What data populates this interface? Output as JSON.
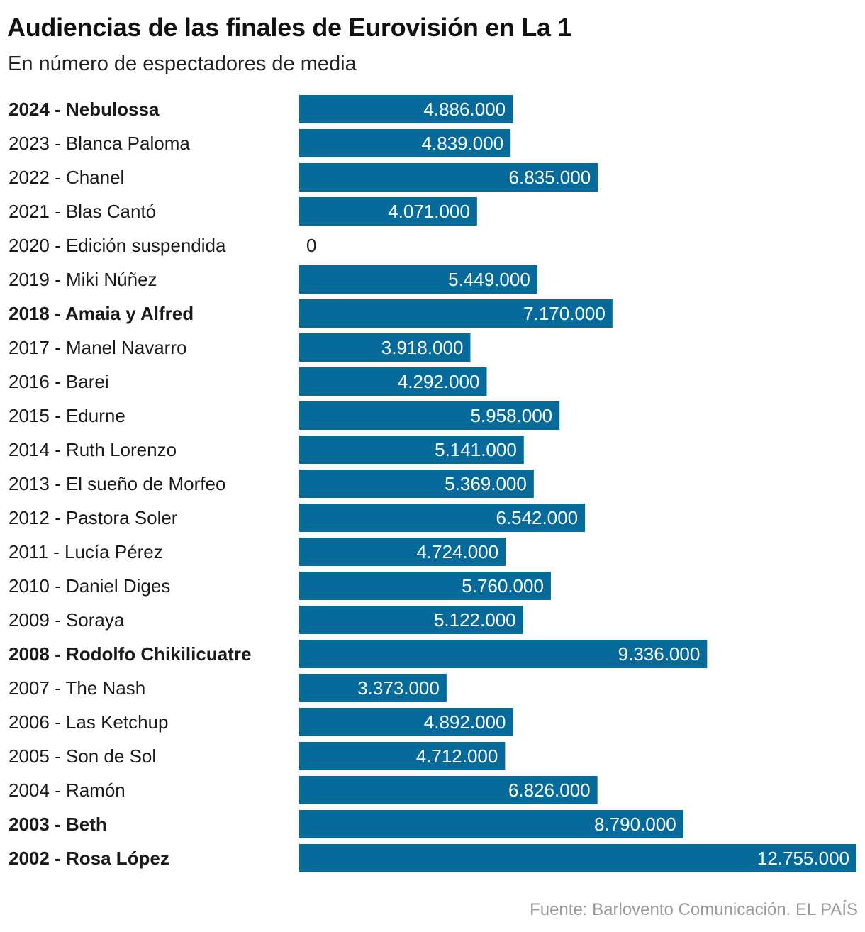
{
  "chart_data": {
    "type": "bar",
    "orientation": "horizontal",
    "title": "Audiencias de las finales de Eurovisión en La 1",
    "subtitle": "En número de espectadores de media",
    "source": "Fuente: Barlovento Comunicación. EL PAÍS",
    "bar_color": "#066a9b",
    "categories": [
      "2024 - Nebulossa",
      "2023 - Blanca Paloma",
      "2022 - Chanel",
      "2021 - Blas Cantó",
      "2020 - Edición suspendida",
      "2019 - Miki Núñez",
      "2018 - Amaia y Alfred",
      "2017 - Manel Navarro",
      "2016 - Barei",
      "2015 - Edurne",
      "2014 - Ruth Lorenzo",
      "2013 - El sueño de Morfeo",
      "2012 - Pastora Soler",
      "2011 - Lucía Pérez",
      "2010 - Daniel Diges",
      "2009 - Soraya",
      "2008 - Rodolfo Chikilicuatre",
      "2007 - The Nash",
      "2006 - Las Ketchup",
      "2005 - Son de Sol",
      "2004 - Ramón",
      "2003 - Beth",
      "2002 - Rosa López"
    ],
    "values": [
      4886000,
      4839000,
      6835000,
      4071000,
      0,
      5449000,
      7170000,
      3918000,
      4292000,
      5958000,
      5141000,
      5369000,
      6542000,
      4724000,
      5760000,
      5122000,
      9336000,
      3373000,
      4892000,
      4712000,
      6826000,
      8790000,
      12755000
    ],
    "value_labels": [
      "4.886.000",
      "4.839.000",
      "6.835.000",
      "4.071.000",
      "0",
      "5.449.000",
      "7.170.000",
      "3.918.000",
      "4.292.000",
      "5.958.000",
      "5.141.000",
      "5.369.000",
      "6.542.000",
      "4.724.000",
      "5.760.000",
      "5.122.000",
      "9.336.000",
      "3.373.000",
      "4.892.000",
      "4.712.000",
      "6.826.000",
      "8.790.000",
      "12.755.000"
    ],
    "highlighted": [
      true,
      false,
      false,
      false,
      false,
      false,
      true,
      false,
      false,
      false,
      false,
      false,
      false,
      false,
      false,
      false,
      true,
      false,
      false,
      false,
      false,
      true,
      true
    ],
    "xlim": [
      0,
      12755000
    ]
  }
}
